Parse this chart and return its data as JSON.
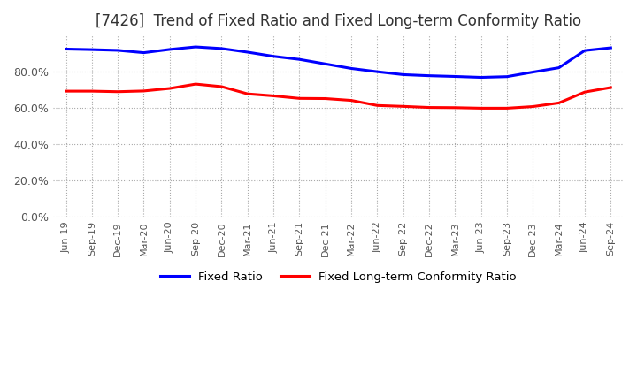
{
  "title": "[7426]  Trend of Fixed Ratio and Fixed Long-term Conformity Ratio",
  "title_fontsize": 12,
  "x_labels": [
    "Jun-19",
    "Sep-19",
    "Dec-19",
    "Mar-20",
    "Jun-20",
    "Sep-20",
    "Dec-20",
    "Mar-21",
    "Jun-21",
    "Sep-21",
    "Dec-21",
    "Mar-22",
    "Jun-22",
    "Sep-22",
    "Dec-22",
    "Mar-23",
    "Jun-23",
    "Sep-23",
    "Dec-23",
    "Mar-24",
    "Jun-24",
    "Sep-24"
  ],
  "fixed_ratio": [
    0.925,
    0.922,
    0.918,
    0.905,
    0.923,
    0.937,
    0.928,
    0.908,
    0.885,
    0.868,
    0.843,
    0.818,
    0.8,
    0.784,
    0.778,
    0.774,
    0.769,
    0.773,
    0.798,
    0.822,
    0.917,
    0.932
  ],
  "fixed_lt_ratio": [
    0.693,
    0.693,
    0.69,
    0.694,
    0.708,
    0.732,
    0.718,
    0.678,
    0.667,
    0.653,
    0.652,
    0.642,
    0.614,
    0.609,
    0.603,
    0.602,
    0.599,
    0.599,
    0.608,
    0.628,
    0.688,
    0.713
  ],
  "fixed_ratio_color": "#0000FF",
  "fixed_lt_ratio_color": "#FF0000",
  "ylim": [
    0.0,
    1.0
  ],
  "yticks": [
    0.0,
    0.2,
    0.4,
    0.6,
    0.8
  ],
  "grid_color": "#aaaaaa",
  "background_color": "#ffffff",
  "legend_fixed": "Fixed Ratio",
  "legend_fixed_lt": "Fixed Long-term Conformity Ratio",
  "line_width": 2.2
}
